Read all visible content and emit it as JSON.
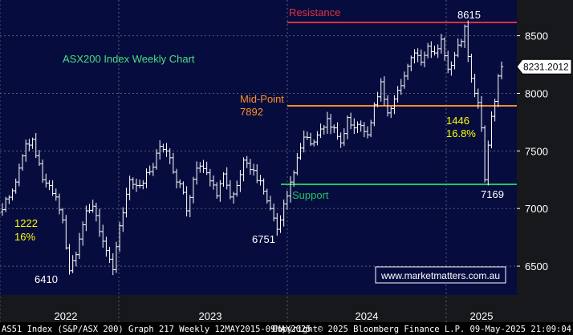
{
  "chart_data": {
    "type": "ohlc",
    "title": "ASX200 Index Weekly Chart",
    "y_ticks": [
      6500,
      7000,
      7500,
      8000,
      8500
    ],
    "ylim": [
      6250,
      8810
    ],
    "x_ticks": [
      "2022",
      "2023",
      "2024",
      "2025"
    ],
    "last_price_label": "8231.2012",
    "levels": [
      {
        "name": "Resistance",
        "value": 8615,
        "color": "#e03040",
        "text_color": "#e03040"
      },
      {
        "name": "Mid-Point",
        "value": 7892,
        "value_label": "7892",
        "color": "#ff8c28",
        "text_color": "#ff8c28"
      },
      {
        "name": "Support",
        "value": 7210,
        "color": "#22c55e",
        "text_color": "#22c55e"
      }
    ],
    "annotations": {
      "high": "8615",
      "low_2025": "7169",
      "low_2022": "6410",
      "low_2023": "6751",
      "move_2022_points": "1222",
      "move_2022_pct": "16%",
      "move_2025_points": "1446",
      "move_2025_pct": "16.8%"
    },
    "anchors": [
      [
        0,
        6990
      ],
      [
        4,
        7230
      ],
      [
        7,
        7560
      ],
      [
        9,
        7600
      ],
      [
        12,
        7250
      ],
      [
        16,
        7100
      ],
      [
        18,
        6900
      ],
      [
        20,
        6460
      ],
      [
        22,
        6600
      ],
      [
        25,
        6980
      ],
      [
        27,
        7020
      ],
      [
        29,
        6800
      ],
      [
        32,
        6560
      ],
      [
        33,
        6470
      ],
      [
        35,
        6850
      ],
      [
        38,
        7250
      ],
      [
        41,
        7200
      ],
      [
        44,
        7320
      ],
      [
        47,
        7540
      ],
      [
        49,
        7500
      ],
      [
        52,
        7230
      ],
      [
        54,
        7140
      ],
      [
        55,
        6980
      ],
      [
        58,
        7350
      ],
      [
        61,
        7310
      ],
      [
        64,
        7110
      ],
      [
        66,
        7300
      ],
      [
        68,
        7100
      ],
      [
        70,
        7200
      ],
      [
        72,
        7420
      ],
      [
        75,
        7330
      ],
      [
        78,
        7150
      ],
      [
        80,
        7000
      ],
      [
        82,
        6820
      ],
      [
        84,
        7040
      ],
      [
        86,
        7230
      ],
      [
        88,
        7440
      ],
      [
        90,
        7620
      ],
      [
        92,
        7560
      ],
      [
        95,
        7690
      ],
      [
        97,
        7780
      ],
      [
        99,
        7700
      ],
      [
        101,
        7570
      ],
      [
        103,
        7790
      ],
      [
        105,
        7700
      ],
      [
        107,
        7720
      ],
      [
        109,
        7640
      ],
      [
        111,
        7900
      ],
      [
        113,
        8100
      ],
      [
        115,
        7830
      ],
      [
        117,
        7950
      ],
      [
        120,
        8150
      ],
      [
        123,
        8350
      ],
      [
        125,
        8270
      ],
      [
        127,
        8410
      ],
      [
        129,
        8350
      ],
      [
        131,
        8470
      ],
      [
        133,
        8210
      ],
      [
        135,
        8330
      ],
      [
        137,
        8450
      ],
      [
        138,
        8580
      ],
      [
        139,
        8320
      ],
      [
        141,
        8000
      ],
      [
        142,
        7920
      ],
      [
        143,
        7700
      ],
      [
        144,
        7250
      ],
      [
        145,
        7550
      ],
      [
        146,
        7800
      ],
      [
        147,
        7930
      ],
      [
        148,
        8150
      ],
      [
        149,
        8231
      ]
    ]
  },
  "watermark": "www.marketmatters.com.au",
  "footer": {
    "left": "AS51 Index (S&P/ASX 200) Graph 217  Weekly 12MAY2015-09MAY2025",
    "right": "Copyright© 2025 Bloomberg Finance L.P.   09-May-2025 21:09:04"
  },
  "colors": {
    "background": "#000000",
    "plot_background": "#060d3e",
    "grid": "#5a5a70",
    "bars": "#ffffff",
    "title": "#4ade80",
    "annotation": "#ffff00",
    "watermark_border": "#ffffff",
    "watermark_text": "#ffffff"
  }
}
